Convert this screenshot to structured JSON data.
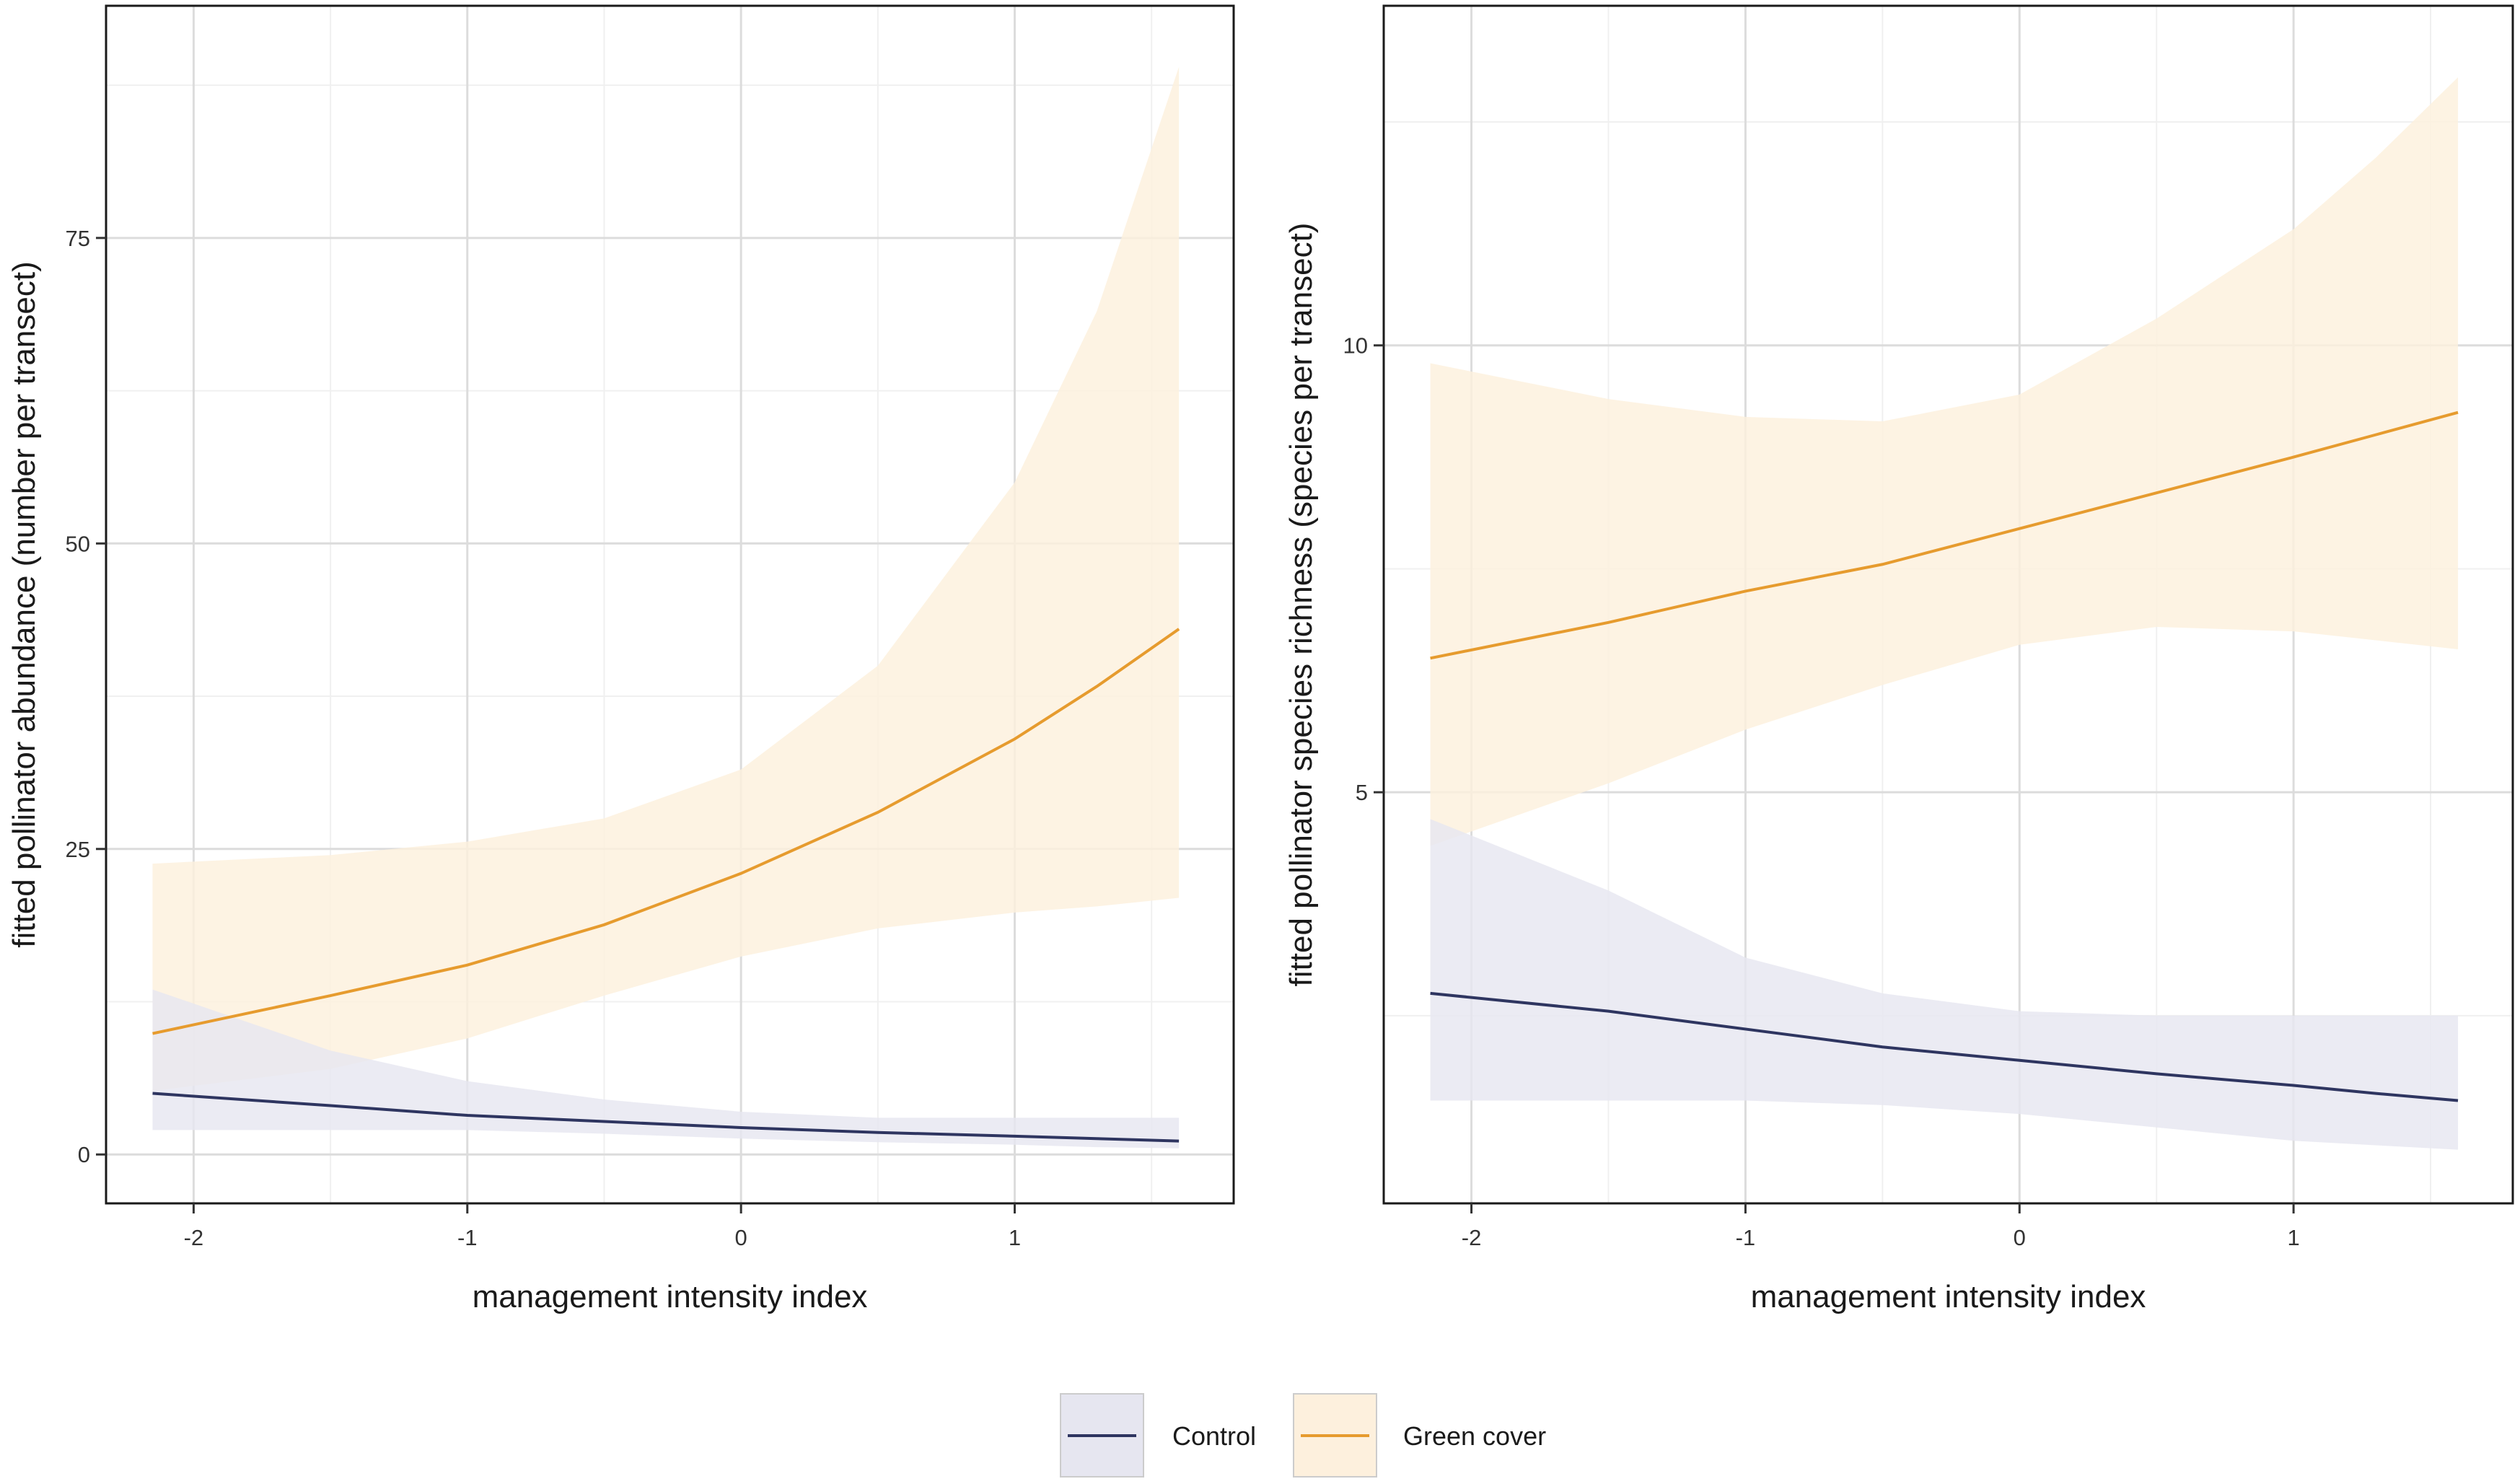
{
  "chart_data": [
    {
      "type": "line",
      "title": "",
      "xlabel": "management intensity index",
      "ylabel": "fitted pollinator abundance (number per transect)",
      "xlim": [
        -2.32,
        1.8
      ],
      "ylim": [
        -4,
        94
      ],
      "x_ticks": [
        -2,
        -1,
        0,
        1
      ],
      "x_tick_labels": [
        "-2",
        "-1",
        "0",
        "1"
      ],
      "y_ticks": [
        0,
        25,
        50,
        75
      ],
      "y_tick_labels": [
        "0",
        "25",
        "50",
        "75"
      ],
      "grid": true,
      "series": [
        {
          "name": "Green cover",
          "color": "#e69b2e",
          "ribbon_color": "#fdf0dd",
          "x": [
            -2.15,
            -1.5,
            -1.0,
            -0.5,
            0.0,
            0.5,
            1.0,
            1.3,
            1.6
          ],
          "y": [
            9.9,
            13.0,
            15.5,
            18.8,
            23.0,
            28.0,
            34.0,
            38.3,
            43.0
          ],
          "lower": [
            5.2,
            7.0,
            9.5,
            13.0,
            16.2,
            18.5,
            19.8,
            20.3,
            21.0
          ],
          "upper": [
            23.8,
            24.5,
            25.6,
            27.5,
            31.5,
            40.0,
            55.0,
            69.0,
            89.0
          ]
        },
        {
          "name": "Control",
          "color": "#2e3560",
          "ribbon_color": "#e6e6f0",
          "x": [
            -2.15,
            -1.5,
            -1.0,
            -0.5,
            0.0,
            0.5,
            1.0,
            1.3,
            1.6
          ],
          "y": [
            5.0,
            4.0,
            3.2,
            2.7,
            2.2,
            1.8,
            1.5,
            1.3,
            1.1
          ],
          "lower": [
            2.0,
            2.0,
            2.0,
            1.7,
            1.3,
            1.0,
            0.8,
            0.6,
            0.5
          ],
          "upper": [
            13.5,
            8.5,
            6.0,
            4.5,
            3.5,
            3.0,
            3.0,
            3.0,
            3.0
          ]
        }
      ]
    },
    {
      "type": "line",
      "title": "",
      "xlabel": "management intensity index",
      "ylabel": "fitted pollinator species richness (species per transect)",
      "xlim": [
        -2.32,
        1.8
      ],
      "ylim": [
        0.4,
        13.8
      ],
      "x_ticks": [
        -2,
        -1,
        0,
        1
      ],
      "x_tick_labels": [
        "-2",
        "-1",
        "0",
        "1"
      ],
      "y_ticks": [
        5,
        10
      ],
      "y_tick_labels": [
        "5",
        "10"
      ],
      "grid": true,
      "series": [
        {
          "name": "Green cover",
          "color": "#e69b2e",
          "ribbon_color": "#fdf0dd",
          "x": [
            -2.15,
            -1.5,
            -1.0,
            -0.5,
            0.0,
            0.5,
            1.0,
            1.3,
            1.6
          ],
          "y": [
            6.5,
            6.9,
            7.25,
            7.55,
            7.95,
            8.35,
            8.75,
            9.0,
            9.25
          ],
          "lower": [
            4.4,
            5.1,
            5.7,
            6.2,
            6.65,
            6.85,
            6.8,
            6.7,
            6.6
          ],
          "upper": [
            9.8,
            9.4,
            9.2,
            9.15,
            9.45,
            10.3,
            11.3,
            12.1,
            13.0
          ]
        },
        {
          "name": "Control",
          "color": "#2e3560",
          "ribbon_color": "#e6e6f0",
          "x": [
            -2.15,
            -1.5,
            -1.0,
            -0.5,
            0.0,
            0.5,
            1.0,
            1.3,
            1.6
          ],
          "y": [
            2.75,
            2.55,
            2.35,
            2.15,
            2.0,
            1.85,
            1.72,
            1.63,
            1.55
          ],
          "lower": [
            1.55,
            1.55,
            1.55,
            1.5,
            1.4,
            1.25,
            1.1,
            1.05,
            1.0
          ],
          "upper": [
            4.7,
            3.9,
            3.15,
            2.75,
            2.55,
            2.5,
            2.5,
            2.5,
            2.5
          ]
        }
      ]
    }
  ],
  "legend": {
    "placement": "bottom",
    "items": [
      {
        "label": "Control",
        "color": "#2e3560",
        "fill": "#e6e6f0"
      },
      {
        "label": "Green cover",
        "color": "#e69b2e",
        "fill": "#fdf0dd"
      }
    ]
  }
}
